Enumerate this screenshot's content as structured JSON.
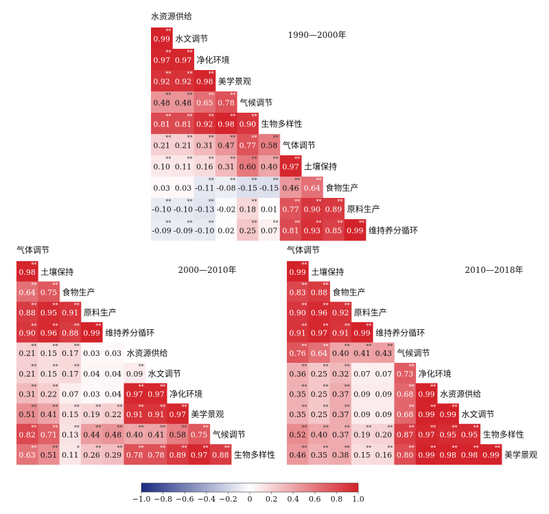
{
  "chart_data": [
    {
      "type": "heatmap",
      "title": "1990—2000年",
      "labels": [
        "水资源供给",
        "水文调节",
        "净化环境",
        "美学景观",
        "气候调节",
        "生物多样性",
        "气体调节",
        "土壤保持",
        "食物生产",
        "原料生产",
        "维持养分循环"
      ],
      "rows": [
        [
          0.99
        ],
        [
          0.97,
          0.97
        ],
        [
          0.92,
          0.92,
          0.98
        ],
        [
          0.48,
          0.48,
          0.65,
          0.78
        ],
        [
          0.81,
          0.81,
          0.92,
          0.98,
          0.9
        ],
        [
          0.21,
          0.21,
          0.31,
          0.47,
          0.77,
          0.58
        ],
        [
          0.1,
          0.11,
          0.16,
          0.31,
          0.6,
          0.4,
          0.97
        ],
        [
          0.03,
          0.03,
          -0.11,
          -0.08,
          -0.15,
          -0.15,
          0.46,
          0.64
        ],
        [
          -0.1,
          -0.1,
          -0.13,
          -0.02,
          0.18,
          0.01,
          0.77,
          0.9,
          0.89
        ],
        [
          -0.09,
          -0.09,
          -0.1,
          0.02,
          0.25,
          0.07,
          0.81,
          0.93,
          0.85,
          0.99
        ]
      ],
      "stars": [
        [
          "**"
        ],
        [
          "**",
          "**"
        ],
        [
          "**",
          "**",
          "**"
        ],
        [
          "**",
          "**",
          "**",
          "**"
        ],
        [
          "**",
          "**",
          "**",
          "**",
          "**"
        ],
        [
          "**",
          "**",
          "**",
          "**",
          "**",
          "**"
        ],
        [
          "**",
          "**",
          "**",
          "**",
          "**",
          "**",
          "**"
        ],
        [
          "",
          "",
          "**",
          "**",
          "**",
          "**",
          "**",
          "**"
        ],
        [
          "**",
          "**",
          "**",
          "",
          "**",
          "",
          "**",
          "**",
          "**"
        ],
        [
          "**",
          "**",
          "**",
          "",
          "**",
          "**",
          "**",
          "**",
          "**",
          "**"
        ]
      ]
    },
    {
      "type": "heatmap",
      "title": "2000—2010年",
      "labels": [
        "气体调节",
        "土壤保持",
        "食物生产",
        "原料生产",
        "维持养分循环",
        "水资源供给",
        "水文调节",
        "净化环境",
        "美学景观",
        "气候调节",
        "生物多样性"
      ],
      "rows": [
        [
          0.98
        ],
        [
          0.64,
          0.75
        ],
        [
          0.88,
          0.95,
          0.91
        ],
        [
          0.9,
          0.96,
          0.88,
          0.99
        ],
        [
          0.21,
          0.15,
          0.17,
          0.03,
          0.03
        ],
        [
          0.21,
          0.15,
          0.17,
          0.04,
          0.04,
          0.09
        ],
        [
          0.31,
          0.22,
          0.07,
          0.03,
          0.04,
          0.97,
          0.97
        ],
        [
          0.51,
          0.41,
          0.15,
          0.19,
          0.22,
          0.91,
          0.91,
          0.97
        ],
        [
          0.82,
          0.71,
          0.13,
          0.44,
          0.48,
          0.4,
          0.41,
          0.58,
          0.75
        ],
        [
          0.63,
          0.51,
          0.11,
          0.26,
          0.29,
          0.78,
          0.78,
          0.89,
          0.97,
          0.88
        ]
      ],
      "stars": [
        [
          "**"
        ],
        [
          "**",
          "**"
        ],
        [
          "**",
          "**",
          "**"
        ],
        [
          "**",
          "**",
          "**",
          "**"
        ],
        [
          "**",
          "**",
          "**",
          "",
          ""
        ],
        [
          "**",
          "**",
          "**",
          "",
          "",
          "**"
        ],
        [
          "**",
          "**",
          "",
          "",
          "",
          "**",
          "**"
        ],
        [
          "**",
          "**",
          "**",
          "**",
          "**",
          "**",
          "**",
          "**"
        ],
        [
          "**",
          "**",
          "**",
          "**",
          "**",
          "**",
          "**",
          "**",
          "**"
        ],
        [
          "**",
          "**",
          "*",
          "**",
          "**",
          "**",
          "**",
          "**",
          "**",
          "**"
        ]
      ]
    },
    {
      "type": "heatmap",
      "title": "2010—2018年",
      "labels": [
        "气体调节",
        "土壤保持",
        "食物生产",
        "原料生产",
        "维持养分循环",
        "气候调节",
        "净化环境",
        "水资源供给",
        "水文调节",
        "生物多样性",
        "美学景观"
      ],
      "rows": [
        [
          0.99
        ],
        [
          0.83,
          0.88
        ],
        [
          0.9,
          0.96,
          0.92
        ],
        [
          0.91,
          0.97,
          0.91,
          0.99
        ],
        [
          0.76,
          0.64,
          0.4,
          0.41,
          0.43
        ],
        [
          0.36,
          0.25,
          0.32,
          0.07,
          0.07,
          0.73
        ],
        [
          0.35,
          0.25,
          0.37,
          0.09,
          0.09,
          0.68,
          0.99
        ],
        [
          0.35,
          0.25,
          0.37,
          0.09,
          0.09,
          0.68,
          0.99,
          0.99
        ],
        [
          0.52,
          0.4,
          0.37,
          0.19,
          0.2,
          0.87,
          0.97,
          0.95,
          0.95
        ],
        [
          0.46,
          0.35,
          0.38,
          0.15,
          0.16,
          0.8,
          0.99,
          0.98,
          0.98,
          0.99
        ]
      ],
      "stars": [
        [
          "**"
        ],
        [
          "**",
          "**"
        ],
        [
          "**",
          "**",
          "**"
        ],
        [
          "**",
          "**",
          "**",
          "**"
        ],
        [
          "**",
          "**",
          "**",
          "**",
          "**"
        ],
        [
          "**",
          "**",
          "**",
          "",
          "",
          "**"
        ],
        [
          "**",
          "**",
          "**",
          "",
          "",
          "**",
          "**"
        ],
        [
          "**",
          "**",
          "**",
          "",
          "",
          "**",
          "**",
          "**"
        ],
        [
          "**",
          "**",
          "**",
          "**",
          "**",
          "**",
          "**",
          "**",
          "**"
        ],
        [
          "**",
          "**",
          "**",
          "**",
          "**",
          "**",
          "**",
          "**",
          "**",
          "**"
        ]
      ]
    }
  ],
  "colorbar": {
    "ticks": [
      "−1.0",
      "−0.8",
      "−0.6",
      "−0.4",
      "−0.2",
      "0",
      "0.2",
      "0.4",
      "0.6",
      "0.8",
      "1.0"
    ],
    "low_color": "#1a2a80",
    "mid_color": "#ffffff",
    "high_color": "#d42028"
  }
}
